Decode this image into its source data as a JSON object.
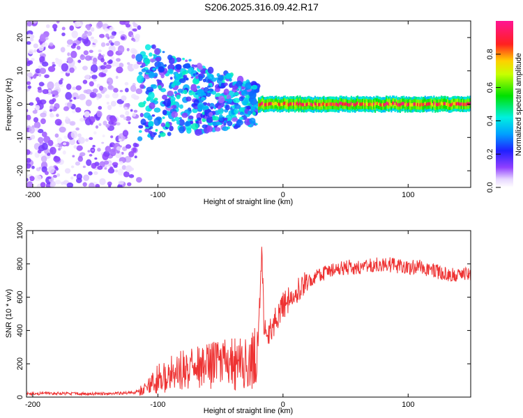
{
  "title": "S206.2025.316.09.42.R17",
  "colors": {
    "frame": "#000000",
    "snr_line": "#ee3333"
  },
  "chart_data": [
    {
      "type": "heatmap",
      "name": "spectrogram",
      "xlabel": "Height of straight line (km)",
      "ylabel": "Frequency (Hz)",
      "xlim": [
        -205,
        150
      ],
      "ylim": [
        -25,
        25
      ],
      "xticks": [
        -200,
        -100,
        0,
        100
      ],
      "yticks": [
        -20,
        -10,
        0,
        10,
        20
      ],
      "colorbar": {
        "label": "Normalized spectral amplitude",
        "range": [
          0,
          1
        ],
        "ticks": [
          "0.0",
          "0.2",
          "0.4",
          "0.6",
          "0.8"
        ],
        "colormap": "rainbow (white → violet → blue → cyan → green → yellow → red → pink)"
      },
      "features": [
        {
          "x_range": [
            -205,
            -115
          ],
          "frequency_range": [
            -25,
            25
          ],
          "amplitude": [
            0.02,
            0.15
          ],
          "description": "diffuse broadband noise"
        },
        {
          "x_range": [
            -115,
            -20
          ],
          "frequency_range": [
            -15,
            15
          ],
          "amplitude": [
            0.1,
            0.45
          ],
          "description": "scattered signal, narrowing with height"
        },
        {
          "x_range": [
            -20,
            150
          ],
          "frequency": 0,
          "bandwidth": [
            -1.5,
            1.5
          ],
          "amplitude": [
            0.7,
            1.0
          ],
          "description": "narrow tone at 0 Hz"
        }
      ]
    },
    {
      "type": "line",
      "name": "snr",
      "xlabel": "Height of straight line (km)",
      "ylabel": "SNR (10 * v/v)",
      "xlim": [
        -205,
        150
      ],
      "ylim": [
        0,
        1000
      ],
      "xticks": [
        -200,
        -100,
        0,
        100
      ],
      "yticks": [
        0,
        200,
        400,
        600,
        800,
        1000
      ],
      "series": [
        {
          "x": [
            -205,
            -180,
            -150,
            -120,
            -110,
            -100,
            -90,
            -80,
            -70,
            -60,
            -50,
            -40,
            -30,
            -25,
            -20,
            -17,
            -15,
            -10,
            0,
            10,
            20,
            30,
            40,
            50,
            60,
            70,
            80,
            90,
            100,
            110,
            120,
            130,
            140,
            150
          ],
          "values": [
            20,
            22,
            20,
            25,
            50,
            110,
            140,
            160,
            170,
            180,
            200,
            200,
            200,
            210,
            280,
            900,
            380,
            400,
            550,
            620,
            700,
            740,
            760,
            780,
            780,
            790,
            800,
            790,
            780,
            780,
            760,
            740,
            730,
            740
          ]
        }
      ]
    }
  ]
}
